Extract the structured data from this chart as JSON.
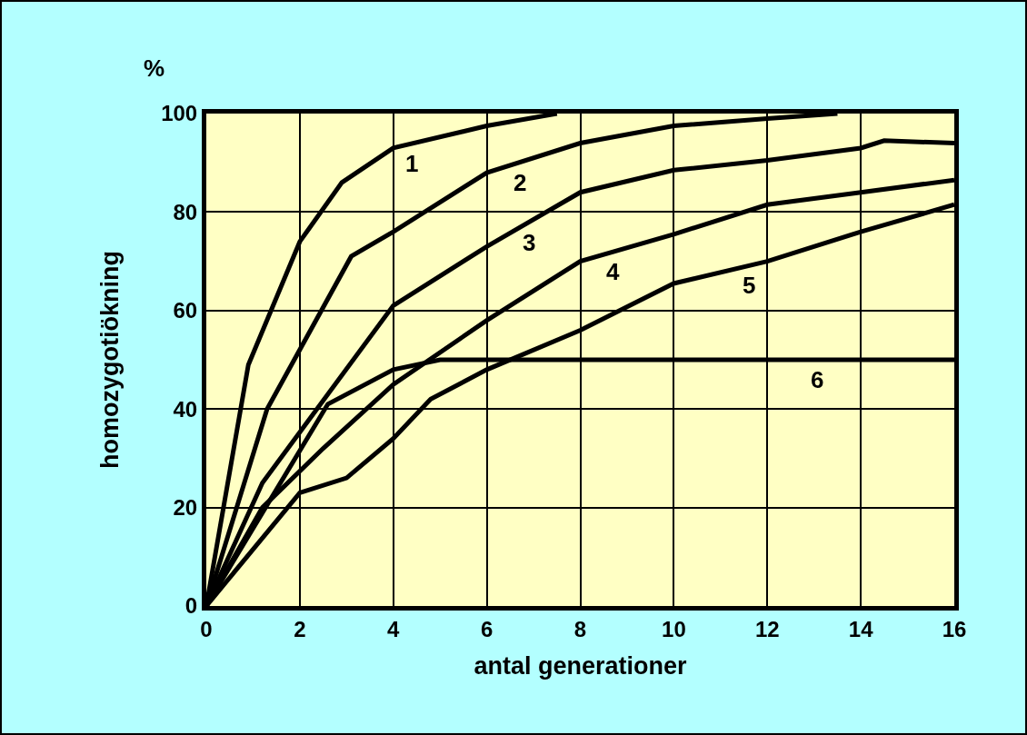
{
  "chart_data": {
    "type": "line",
    "xlabel": "antal generationer",
    "ylabel": "homozygotiökning",
    "annotations": [
      "%"
    ],
    "series": [
      {
        "name": "1",
        "color": "#000000",
        "x": [
          0,
          0.9,
          2,
          2.9,
          4,
          6,
          7.5
        ],
        "values": [
          0,
          49,
          74,
          86,
          93,
          97.5,
          100
        ]
      },
      {
        "name": "2",
        "color": "#000000",
        "x": [
          0,
          1.3,
          3.1,
          4,
          6,
          8,
          10,
          12,
          13.5
        ],
        "values": [
          0,
          40,
          71,
          76,
          88,
          94,
          97.5,
          99,
          100
        ]
      },
      {
        "name": "3",
        "color": "#000000",
        "x": [
          0,
          1.2,
          4,
          6,
          8,
          10,
          12,
          14,
          14.5,
          16
        ],
        "values": [
          0,
          25,
          61,
          73,
          84,
          88.5,
          90.5,
          93,
          94.5,
          94
        ]
      },
      {
        "name": "4",
        "color": "#000000",
        "x": [
          0,
          1.2,
          2.5,
          4,
          6,
          8,
          10,
          12,
          14,
          16
        ],
        "values": [
          0,
          20,
          32,
          45,
          58,
          70,
          75.5,
          81.5,
          84,
          86.5
        ]
      },
      {
        "name": "5",
        "color": "#000000",
        "x": [
          0,
          2,
          3,
          4,
          4.8,
          6,
          8,
          10,
          12,
          14,
          16
        ],
        "values": [
          0,
          23,
          26,
          34,
          42,
          48,
          56,
          65.5,
          70,
          76,
          81.5
        ]
      },
      {
        "name": "6",
        "color": "#000000",
        "x": [
          0,
          2.6,
          4,
          5,
          16
        ],
        "values": [
          0,
          41,
          48,
          50,
          50
        ]
      }
    ],
    "xlim": [
      0,
      16
    ],
    "xticks": [
      0,
      2,
      4,
      6,
      8,
      10,
      12,
      14,
      16
    ],
    "ylim": [
      0,
      100
    ],
    "yticks": [
      0,
      20,
      40,
      60,
      80,
      100
    ],
    "grid": true,
    "legend": false,
    "marker": "none",
    "line_style": "solid"
  }
}
